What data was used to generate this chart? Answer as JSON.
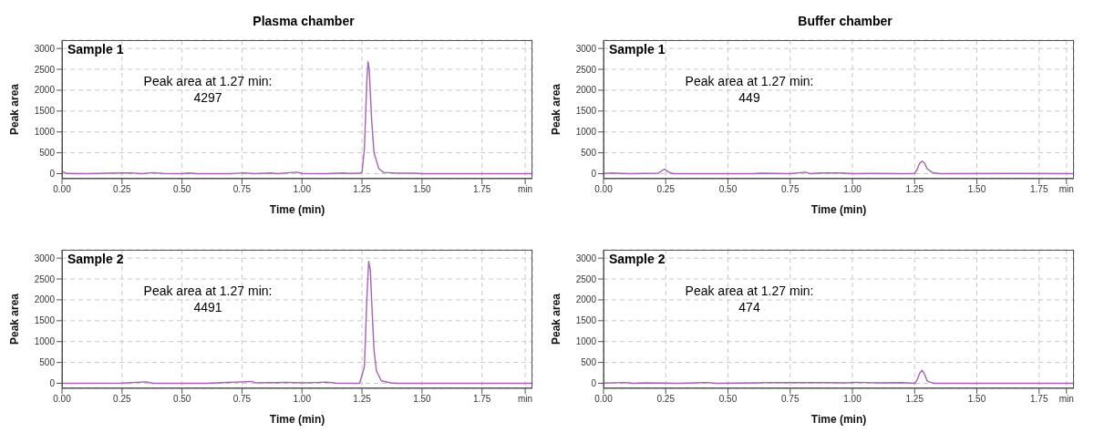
{
  "chart_data": [
    {
      "type": "line",
      "title": "Plasma chamber",
      "xlabel": "Time (min)",
      "ylabel": "Peak area",
      "annotations": [
        "Sample 1",
        "Peak area at 1.27 min:\n4297"
      ],
      "grid": true,
      "xlim": [
        0,
        1.96
      ],
      "ylim": [
        -120,
        3200
      ],
      "yticks": [
        0,
        500,
        1000,
        1500,
        2000,
        2500,
        3000
      ],
      "xticks": [
        {
          "value": 0,
          "label": "0.00"
        },
        {
          "value": 0.25,
          "label": "0.25"
        },
        {
          "value": 0.5,
          "label": "0.50"
        },
        {
          "value": 0.75,
          "label": "0.75"
        },
        {
          "value": 1,
          "label": "1.00"
        },
        {
          "value": 1.25,
          "label": "1.25"
        },
        {
          "value": 1.5,
          "label": "1.50"
        },
        {
          "value": 1.75,
          "label": "1.75"
        },
        {
          "value": 1.93,
          "label": "min"
        }
      ],
      "x": [
        0,
        0.02,
        0.1,
        0.24,
        0.29,
        0.33,
        0.38,
        0.42,
        0.5,
        0.53,
        0.56,
        0.7,
        0.76,
        0.8,
        0.87,
        0.9,
        0.95,
        0.98,
        1.0,
        1.1,
        1.17,
        1.2,
        1.24,
        1.25,
        1.26,
        1.27,
        1.275,
        1.28,
        1.29,
        1.3,
        1.32,
        1.34,
        1.4,
        1.47,
        1.5,
        1.75,
        1.96
      ],
      "series": [
        {
          "color": "#a860b8",
          "values": [
            60,
            5,
            0,
            15,
            20,
            0,
            25,
            5,
            0,
            15,
            0,
            0,
            20,
            0,
            15,
            0,
            25,
            35,
            5,
            0,
            15,
            5,
            10,
            30,
            600,
            2200,
            2680,
            2500,
            1300,
            500,
            120,
            30,
            10,
            10,
            0,
            0,
            0
          ]
        }
      ]
    },
    {
      "type": "line",
      "title": "Buffer chamber",
      "xlabel": "Time (min)",
      "ylabel": "Peak area",
      "annotations": [
        "Sample 1",
        "Peak area at 1.27 min:\n449"
      ],
      "grid": true,
      "xlim": [
        0,
        1.89
      ],
      "ylim": [
        -120,
        3200
      ],
      "yticks": [
        0,
        500,
        1000,
        1500,
        2000,
        2500,
        3000
      ],
      "xticks": [
        {
          "value": 0,
          "label": "0.00"
        },
        {
          "value": 0.25,
          "label": "0.25"
        },
        {
          "value": 0.5,
          "label": "0.50"
        },
        {
          "value": 0.75,
          "label": "0.75"
        },
        {
          "value": 1,
          "label": "1.00"
        },
        {
          "value": 1.25,
          "label": "1.25"
        },
        {
          "value": 1.5,
          "label": "1.50"
        },
        {
          "value": 1.75,
          "label": "1.75"
        },
        {
          "value": 1.86,
          "label": "min"
        }
      ],
      "x": [
        0,
        0.03,
        0.1,
        0.22,
        0.245,
        0.26,
        0.28,
        0.6,
        0.63,
        0.75,
        0.81,
        0.83,
        0.87,
        0.93,
        0.96,
        1.0,
        1.08,
        1.2,
        1.25,
        1.26,
        1.27,
        1.28,
        1.29,
        1.3,
        1.32,
        1.35,
        1.65,
        1.89
      ],
      "series": [
        {
          "color": "#a860b8",
          "values": [
            0,
            15,
            0,
            10,
            110,
            40,
            0,
            0,
            10,
            0,
            35,
            0,
            15,
            20,
            15,
            0,
            5,
            0,
            5,
            100,
            250,
            300,
            250,
            120,
            30,
            0,
            5,
            0
          ]
        }
      ]
    },
    {
      "type": "line",
      "xlabel": "Time (min)",
      "ylabel": "Peak area",
      "annotations": [
        "Sample 2",
        "Peak area at 1.27 min:\n4491"
      ],
      "grid": true,
      "xlim": [
        0,
        1.96
      ],
      "ylim": [
        -120,
        3200
      ],
      "yticks": [
        0,
        500,
        1000,
        1500,
        2000,
        2500,
        3000
      ],
      "xticks": [
        {
          "value": 0,
          "label": "0.00"
        },
        {
          "value": 0.25,
          "label": "0.25"
        },
        {
          "value": 0.5,
          "label": "0.50"
        },
        {
          "value": 0.75,
          "label": "0.75"
        },
        {
          "value": 1,
          "label": "1.00"
        },
        {
          "value": 1.25,
          "label": "1.25"
        },
        {
          "value": 1.5,
          "label": "1.50"
        },
        {
          "value": 1.75,
          "label": "1.75"
        },
        {
          "value": 1.93,
          "label": "min"
        }
      ],
      "x": [
        0,
        0.25,
        0.35,
        0.38,
        0.6,
        0.79,
        0.81,
        0.85,
        0.9,
        0.93,
        1.0,
        1.06,
        1.1,
        1.14,
        1.24,
        1.26,
        1.27,
        1.278,
        1.285,
        1.29,
        1.3,
        1.31,
        1.33,
        1.37,
        1.4,
        1.96
      ],
      "series": [
        {
          "color": "#a860b8",
          "values": [
            0,
            5,
            35,
            0,
            0,
            45,
            10,
            20,
            15,
            25,
            10,
            20,
            30,
            5,
            0,
            400,
            2000,
            2920,
            2700,
            2000,
            800,
            300,
            60,
            10,
            0,
            0
          ]
        }
      ]
    },
    {
      "type": "line",
      "xlabel": "Time (min)",
      "ylabel": "Peak area",
      "annotations": [
        "Sample 2",
        "Peak area at 1.27 min:\n474"
      ],
      "grid": true,
      "xlim": [
        0,
        1.89
      ],
      "ylim": [
        -120,
        3200
      ],
      "yticks": [
        0,
        500,
        1000,
        1500,
        2000,
        2500,
        3000
      ],
      "xticks": [
        {
          "value": 0,
          "label": "0.00"
        },
        {
          "value": 0.25,
          "label": "0.25"
        },
        {
          "value": 0.5,
          "label": "0.50"
        },
        {
          "value": 0.75,
          "label": "0.75"
        },
        {
          "value": 1,
          "label": "1.00"
        },
        {
          "value": 1.25,
          "label": "1.25"
        },
        {
          "value": 1.5,
          "label": "1.50"
        },
        {
          "value": 1.75,
          "label": "1.75"
        },
        {
          "value": 1.86,
          "label": "min"
        }
      ],
      "x": [
        0,
        0.09,
        0.12,
        0.17,
        0.3,
        0.42,
        0.45,
        0.62,
        0.68,
        0.74,
        0.8,
        0.89,
        0.97,
        1.02,
        1.04,
        1.1,
        1.2,
        1.25,
        1.26,
        1.27,
        1.28,
        1.29,
        1.3,
        1.31,
        1.33,
        1.89
      ],
      "series": [
        {
          "color": "#a860b8",
          "values": [
            5,
            20,
            0,
            10,
            0,
            20,
            0,
            10,
            20,
            15,
            20,
            15,
            10,
            25,
            20,
            10,
            15,
            0,
            80,
            240,
            310,
            220,
            60,
            30,
            0,
            0
          ]
        }
      ]
    }
  ]
}
